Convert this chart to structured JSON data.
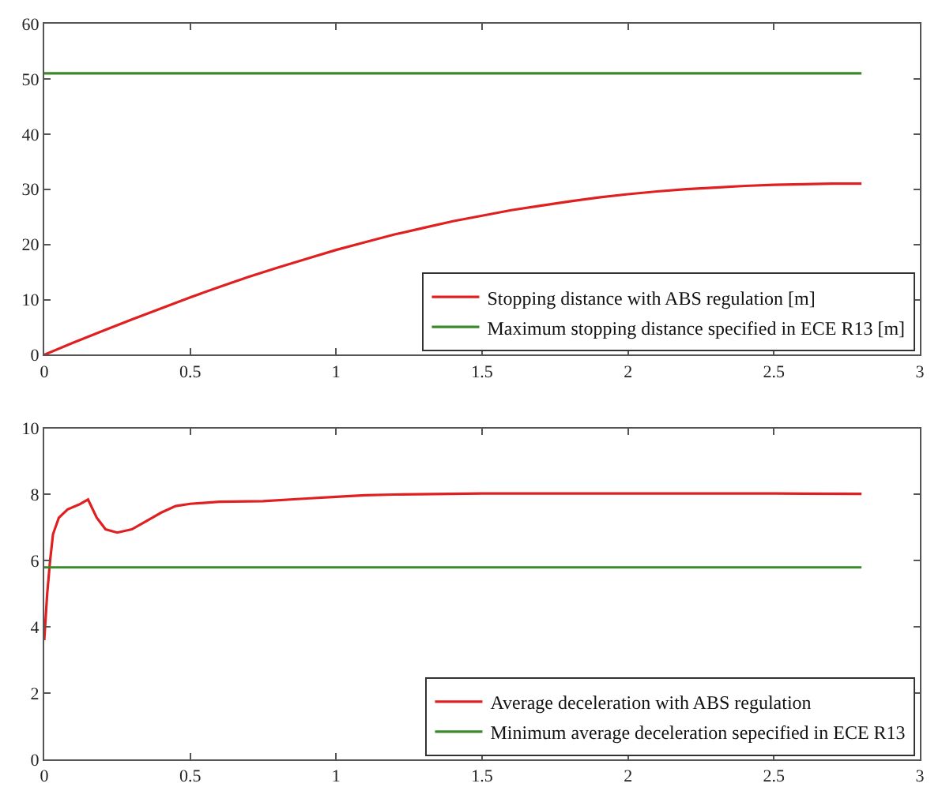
{
  "chart_data": [
    {
      "type": "line",
      "xlim": [
        0,
        3
      ],
      "xticks": [
        0,
        0.5,
        1,
        1.5,
        2,
        2.5,
        3
      ],
      "ylim": [
        0,
        60
      ],
      "yticks": [
        0,
        10,
        20,
        30,
        40,
        50,
        60
      ],
      "legend": "bottom right",
      "marker": "none",
      "line_style": "solid",
      "series": [
        {
          "name": "Stopping distance with ABS regulation [m]",
          "color": "#e02020",
          "x": [
            0,
            0.1,
            0.2,
            0.3,
            0.4,
            0.5,
            0.6,
            0.7,
            0.8,
            0.9,
            1.0,
            1.1,
            1.2,
            1.3,
            1.4,
            1.5,
            1.6,
            1.7,
            1.8,
            1.9,
            2.0,
            2.1,
            2.2,
            2.3,
            2.4,
            2.5,
            2.6,
            2.7,
            2.8
          ],
          "values": [
            0,
            2.2,
            4.3,
            6.4,
            8.4,
            10.4,
            12.3,
            14.1,
            15.8,
            17.4,
            19.0,
            20.4,
            21.8,
            23.0,
            24.2,
            25.2,
            26.2,
            27.0,
            27.8,
            28.5,
            29.1,
            29.6,
            30.0,
            30.3,
            30.6,
            30.8,
            30.9,
            31.0,
            31.0
          ]
        },
        {
          "name": "Maximum stopping distance specified in ECE R13 [m]",
          "color": "#3a8a2a",
          "x": [
            0,
            2.8
          ],
          "values": [
            51,
            51
          ]
        }
      ]
    },
    {
      "type": "line",
      "xlim": [
        0,
        3
      ],
      "xticks": [
        0,
        0.5,
        1,
        1.5,
        2,
        2.5,
        3
      ],
      "ylim": [
        0,
        10
      ],
      "yticks": [
        0,
        2,
        4,
        6,
        8,
        10
      ],
      "legend": "bottom right",
      "marker": "none",
      "line_style": "solid",
      "series": [
        {
          "name": "Average deceleration with ABS regulation",
          "color": "#e02020",
          "x": [
            0,
            0.01,
            0.02,
            0.03,
            0.05,
            0.08,
            0.12,
            0.15,
            0.18,
            0.21,
            0.25,
            0.3,
            0.35,
            0.4,
            0.45,
            0.5,
            0.6,
            0.75,
            0.9,
            1.0,
            1.1,
            1.2,
            1.5,
            2.0,
            2.5,
            2.8
          ],
          "values": [
            3.6,
            5.0,
            6.0,
            6.8,
            7.3,
            7.55,
            7.7,
            7.85,
            7.3,
            6.95,
            6.85,
            6.95,
            7.2,
            7.45,
            7.65,
            7.72,
            7.78,
            7.8,
            7.88,
            7.93,
            7.98,
            8.0,
            8.03,
            8.03,
            8.03,
            8.02
          ]
        },
        {
          "name": "Minimum average deceleration sepecified in ECE R13",
          "color": "#3a8a2a",
          "x": [
            0,
            2.8
          ],
          "values": [
            5.8,
            5.8
          ]
        }
      ]
    }
  ]
}
